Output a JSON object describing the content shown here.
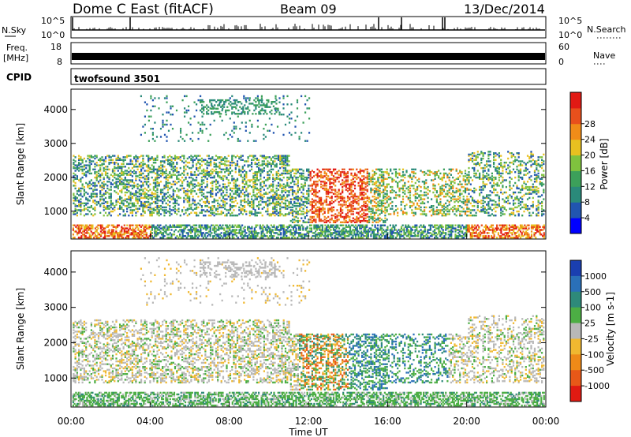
{
  "header": {
    "title": "Dome C East (fitACF)",
    "beam": "Beam 09",
    "date": "13/Dec/2014"
  },
  "status_panels": {
    "nsky_label": "N.Sky",
    "nsky_ticks": [
      "10^5",
      "10^0"
    ],
    "nsearch_label": "N.Search",
    "freq_label_lines": [
      "Freq.",
      "[MHz]"
    ],
    "freq_ticks": [
      "18",
      "8"
    ],
    "nave_label": "Nave",
    "nave_ticks": [
      "60",
      "0"
    ],
    "cpid_label": "CPID",
    "cpid_value": "twofsound 3501"
  },
  "chart_data": [
    {
      "type": "heatmap",
      "name": "power",
      "ylabel": "Slant Range [km]",
      "ylim": [
        180,
        4600
      ],
      "yticks": [
        "1000",
        "2000",
        "3000",
        "4000"
      ],
      "colorbar": {
        "label": "Power [dB]",
        "ticks": [
          "4",
          "8",
          "12",
          "16",
          "20",
          "24",
          "28"
        ],
        "colors": [
          "#0000ff",
          "#2155b0",
          "#2a8a7a",
          "#3ca05a",
          "#7fc23e",
          "#e8c020",
          "#f08c18",
          "#e8501c",
          "#e11a14"
        ]
      }
    },
    {
      "type": "heatmap",
      "name": "velocity",
      "ylabel": "Slant Range [km]",
      "xlabel": "Time UT",
      "ylim": [
        180,
        4600
      ],
      "yticks": [
        "1000",
        "2000",
        "3000",
        "4000"
      ],
      "xticks": [
        "00:00",
        "04:00",
        "08:00",
        "12:00",
        "16:00",
        "20:00",
        "00:00"
      ],
      "colorbar": {
        "label": "Velocity [m s-1]",
        "ticks": [
          "1000",
          "500",
          "100",
          "25",
          "-25",
          "-100",
          "-500",
          "-1000"
        ],
        "colors": [
          "#1a3fb0",
          "#2a70b8",
          "#2e8a7a",
          "#4cae44",
          "#b8b8b8",
          "#f0b830",
          "#ee8a18",
          "#e85818",
          "#e01a12"
        ]
      }
    }
  ]
}
